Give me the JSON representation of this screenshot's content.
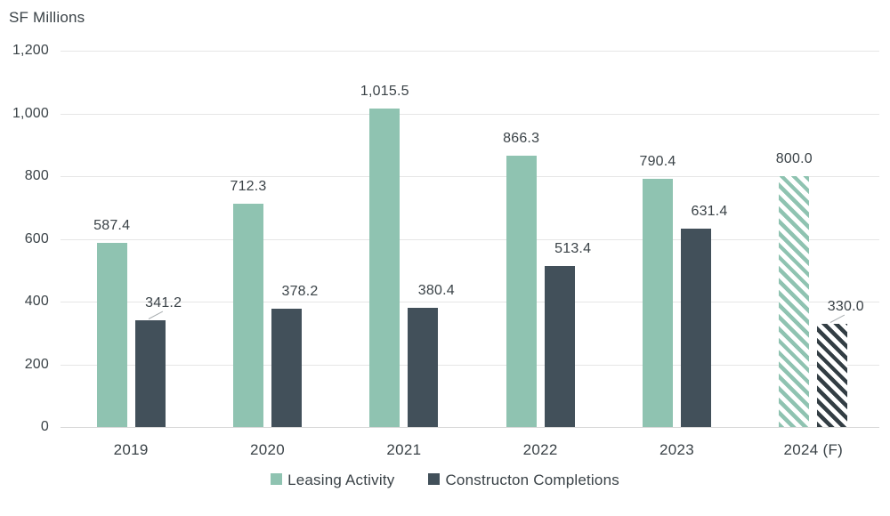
{
  "chart_data": {
    "type": "bar",
    "title": "SF Millions",
    "xlabel": "",
    "ylabel": "SF Millions",
    "categories": [
      "2019",
      "2020",
      "2021",
      "2022",
      "2023",
      "2024 (F)"
    ],
    "series": [
      {
        "name": "Leasing Activity",
        "color": "#8FC3B1",
        "hatch_color": "#8FC3B1",
        "values": [
          587.4,
          712.3,
          1015.5,
          866.3,
          790.4,
          800.0
        ],
        "value_labels": [
          "587.4",
          "712.3",
          "1,015.5",
          "866.3",
          "790.4",
          "800.0"
        ]
      },
      {
        "name": "Constructon Completions",
        "color": "#42505A",
        "hatch_color": "#333E44",
        "values": [
          341.2,
          378.2,
          380.4,
          513.4,
          631.4,
          330.0
        ],
        "value_labels": [
          "341.2",
          "378.2",
          "380.4",
          "513.4",
          "631.4",
          "330.0"
        ]
      }
    ],
    "forecast_category_index": 5,
    "y_axis": {
      "min": 0,
      "max": 1200,
      "tick_step": 200,
      "tick_labels_top_to_bottom": [
        "1,200",
        "1,000",
        "800",
        "600",
        "400",
        "200",
        "0"
      ]
    },
    "grid": "horizontal",
    "legend_position": "bottom",
    "callouts": [
      {
        "series": 1,
        "category": 0
      },
      {
        "series": 1,
        "category": 5
      }
    ]
  },
  "style": {
    "text_color": "#3A4247",
    "gridline_color": "#E6E6E6",
    "baseline_color": "#D9D9D9",
    "background_color": "#FFFFFF"
  }
}
